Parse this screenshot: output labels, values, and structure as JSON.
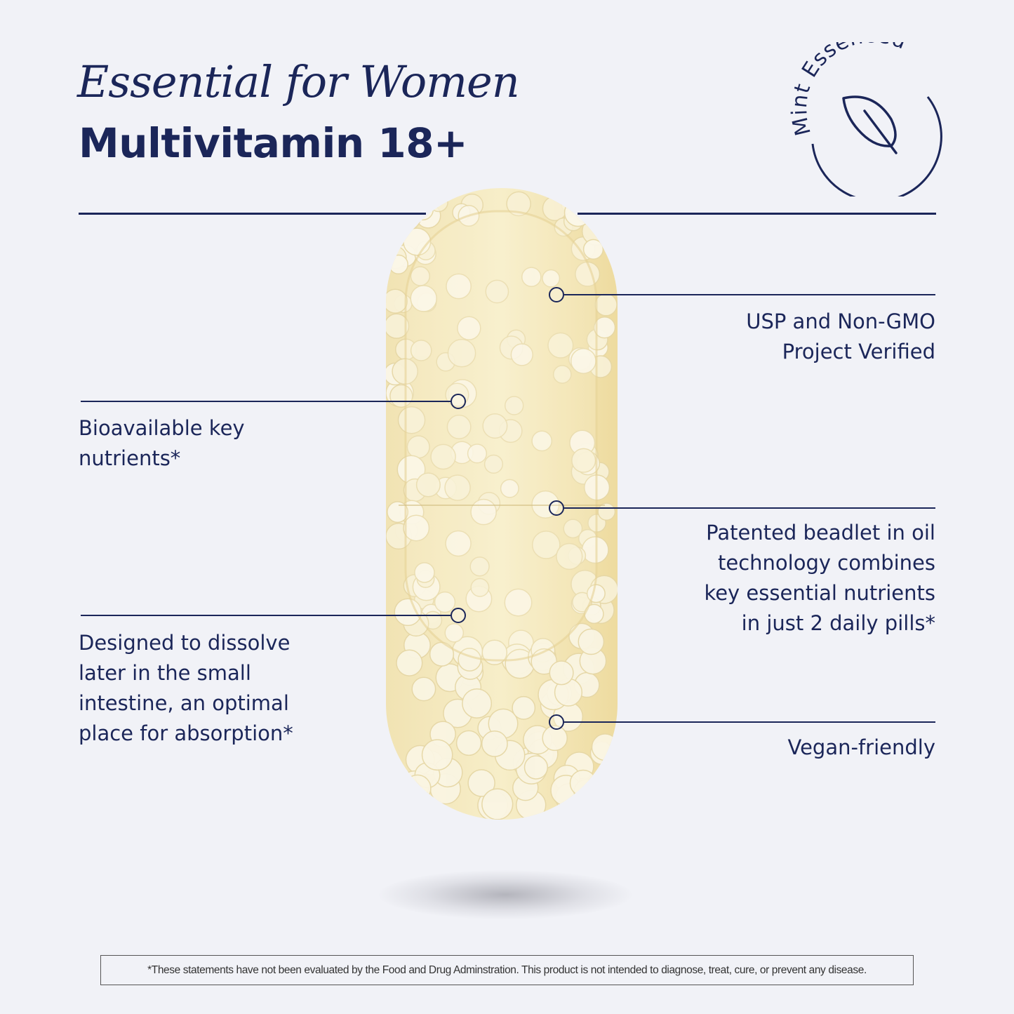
{
  "header": {
    "title": "Essential for Women",
    "subtitle": "Multivitamin 18+"
  },
  "badge": {
    "text": "Mint Essenced",
    "icon": "mint-leaf-icon"
  },
  "callouts": {
    "usp": [
      "USP and Non-GMO",
      "Project Verified"
    ],
    "bioavailable": [
      "Bioavailable key",
      "nutrients*"
    ],
    "beadlet": [
      "Patented beadlet in oil",
      "technology combines",
      "key essential nutrients",
      "in just 2 daily pills*"
    ],
    "dissolve": [
      "Designed to dissolve",
      "later in the small",
      "intestine, an optimal",
      "place for absorption*"
    ],
    "vegan": [
      "Vegan-friendly"
    ]
  },
  "disclaimer": "*These statements have not been evaluated by the Food and Drug Adminstration. This product is not intended to diagnose, treat, cure, or prevent any disease.",
  "colors": {
    "navy": "#1b2659",
    "background": "#f1f2f7",
    "capsule": "#f3e6b8"
  }
}
